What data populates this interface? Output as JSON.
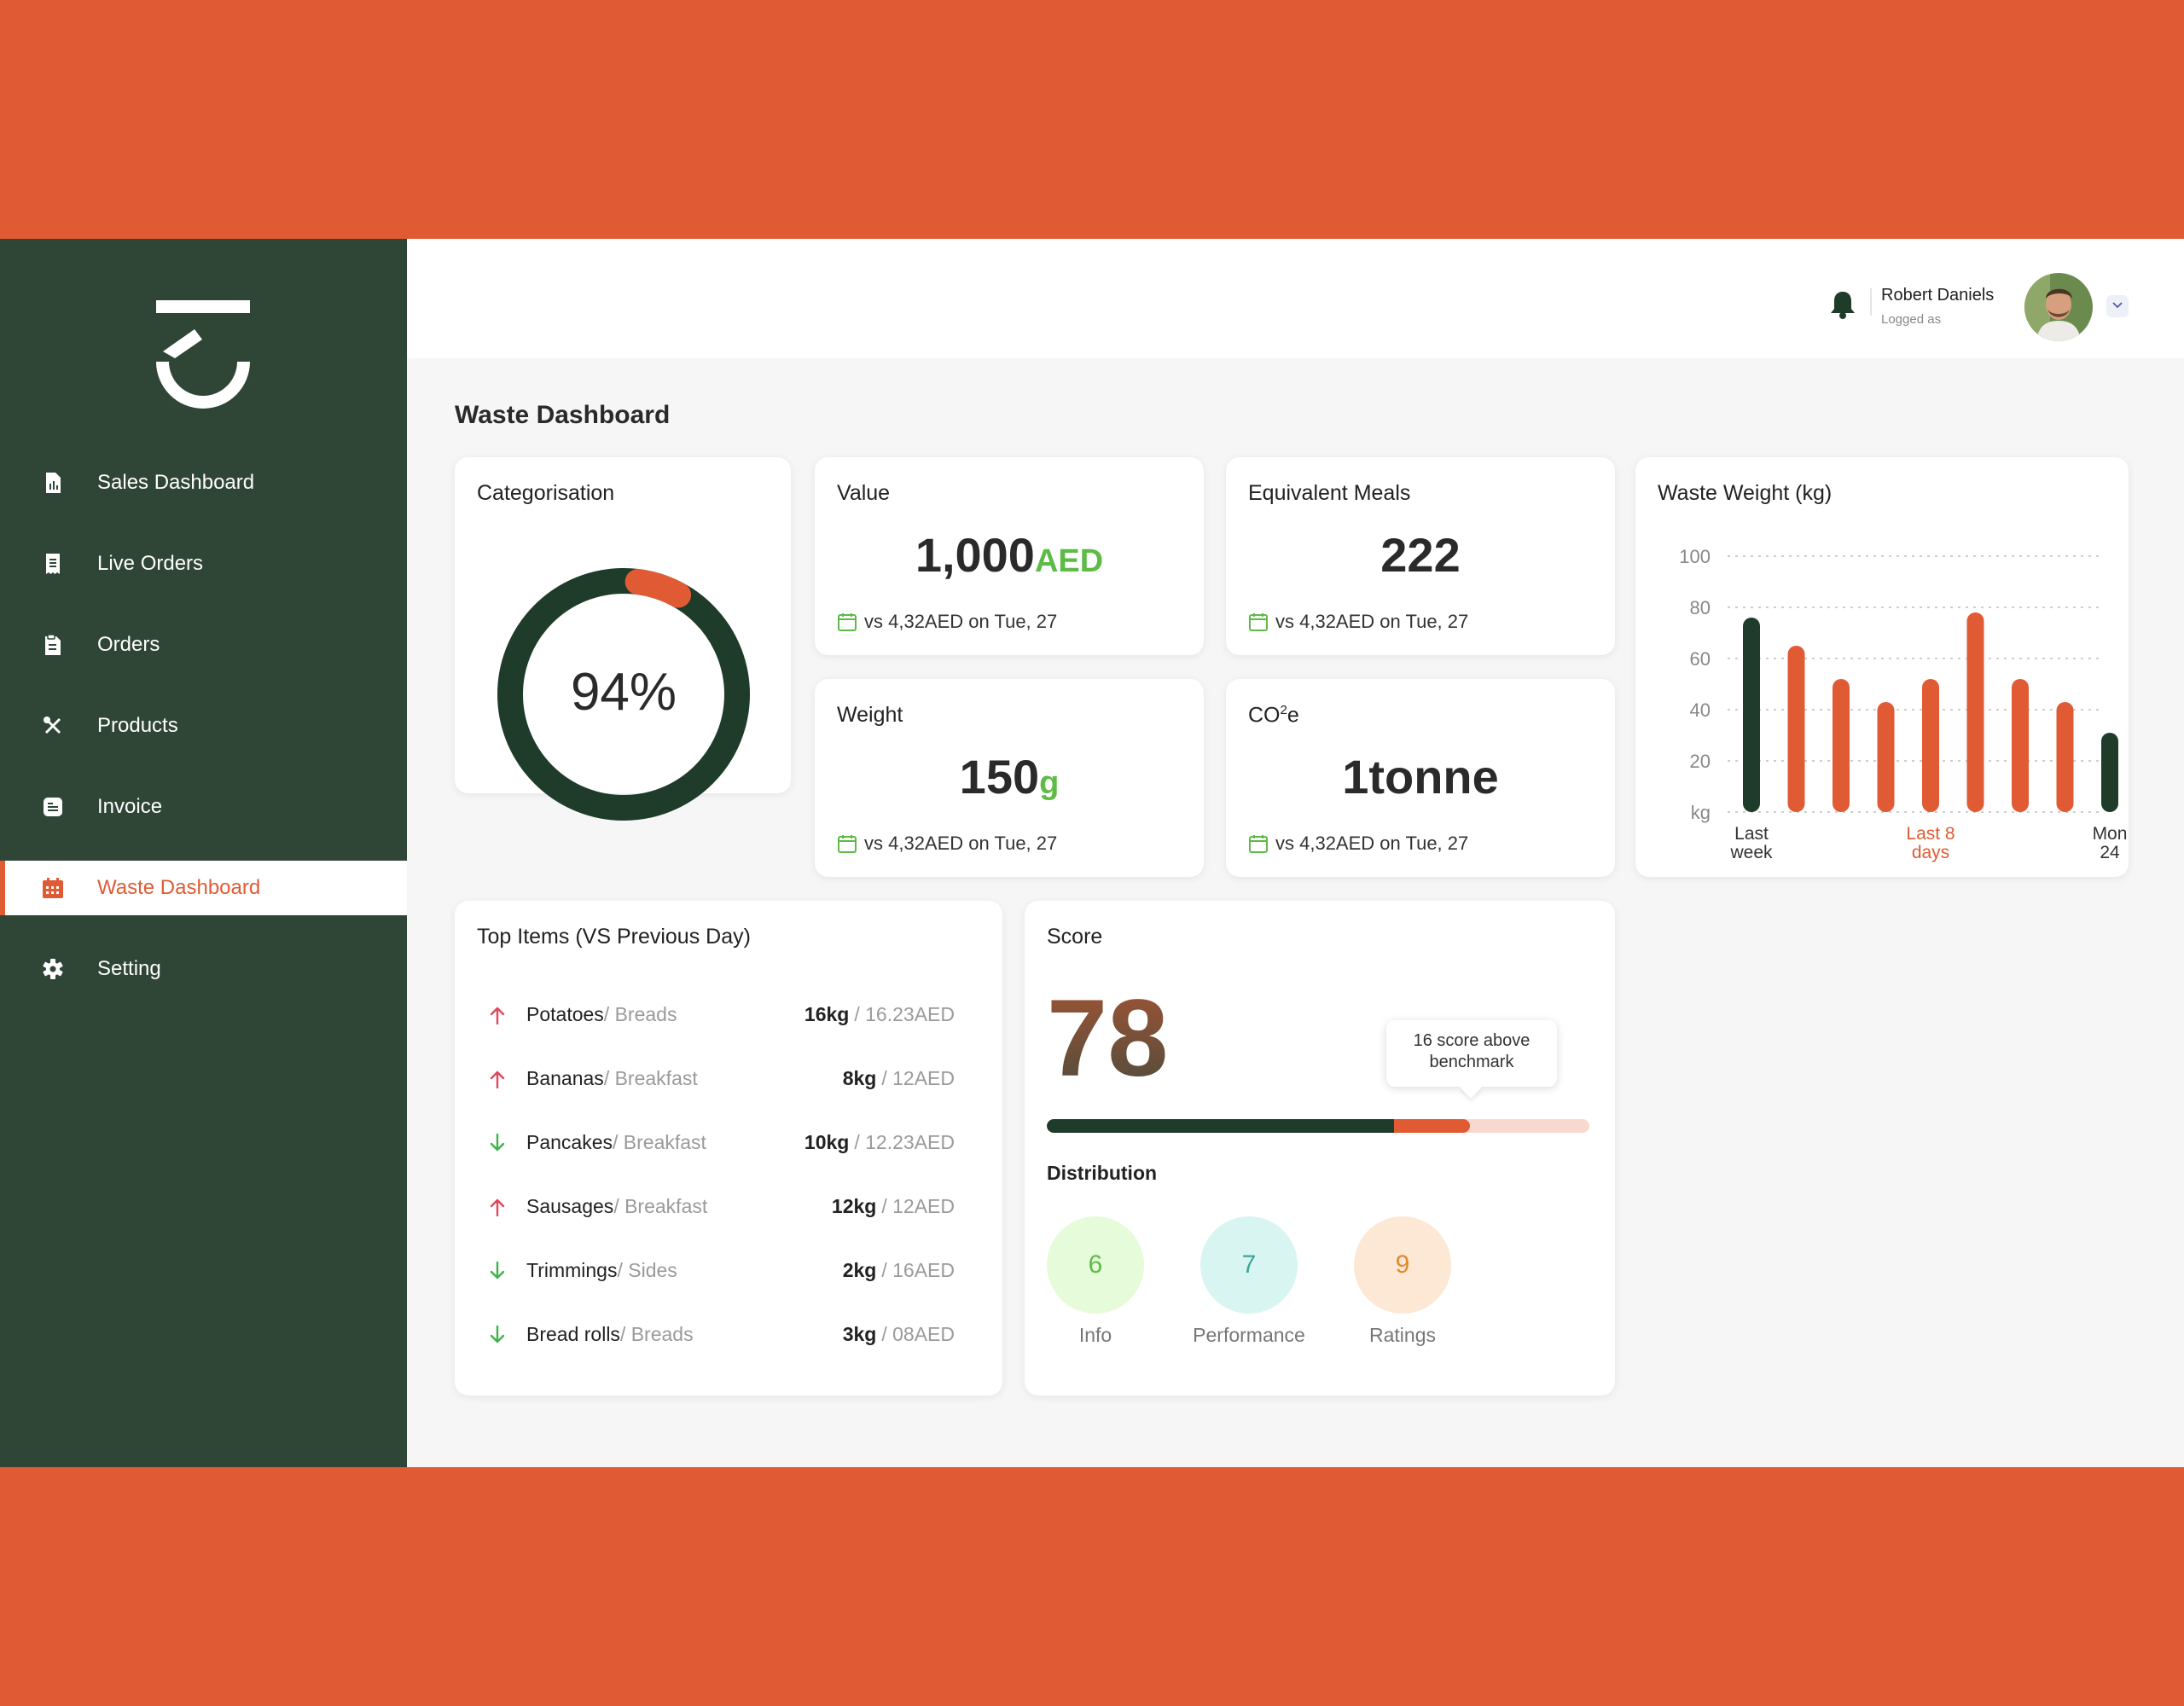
{
  "sidebar": {
    "items": [
      {
        "label": "Sales Dashboard",
        "icon": "report-icon"
      },
      {
        "label": "Live Orders",
        "icon": "receipt-icon"
      },
      {
        "label": "Orders",
        "icon": "clipboard-icon"
      },
      {
        "label": "Products",
        "icon": "utensils-icon"
      },
      {
        "label": "Invoice",
        "icon": "invoice-icon"
      },
      {
        "label": "Waste Dashboard",
        "icon": "calendar-icon",
        "active": true
      },
      {
        "label": "Setting",
        "icon": "gear-icon"
      }
    ]
  },
  "header": {
    "user_name": "Robert Daniels",
    "user_sub": "Logged as"
  },
  "page": {
    "title": "Waste Dashboard"
  },
  "categorisation": {
    "title": "Categorisation",
    "percent_label": "94%",
    "percent": 94
  },
  "value": {
    "title": "Value",
    "number": "1,000",
    "unit": "AED",
    "compare": "vs 4,32AED on Tue, 27"
  },
  "meals": {
    "title": "Equivalent Meals",
    "number": "222",
    "compare": "vs 4,32AED on Tue, 27"
  },
  "weight": {
    "title": "Weight",
    "number": "150",
    "unit": "g",
    "compare": "vs 4,32AED on Tue, 27"
  },
  "co2": {
    "title_main": "CO",
    "title_sup": "2",
    "title_tail": "e",
    "number": "1tonne",
    "compare": "vs 4,32AED on Tue, 27"
  },
  "top_items": {
    "title": "Top Items (VS Previous Day)",
    "rows": [
      {
        "name": "Potatoes",
        "category": " / Breads",
        "qty": "16kg",
        "price": "/ 16.23AED",
        "trend": "up"
      },
      {
        "name": "Bananas",
        "category": " / Breakfast",
        "qty": "8kg",
        "price": "/ 12AED",
        "trend": "up"
      },
      {
        "name": "Pancakes",
        "category": " / Breakfast",
        "qty": "10kg",
        "price": "/ 12.23AED",
        "trend": "down"
      },
      {
        "name": "Sausages",
        "category": " / Breakfast",
        "qty": "12kg",
        "price": "/ 12AED",
        "trend": "up"
      },
      {
        "name": "Trimmings",
        "category": " / Sides",
        "qty": "2kg",
        "price": "/ 16AED",
        "trend": "down"
      },
      {
        "name": "Bread rolls",
        "category": " / Breads",
        "qty": "3kg",
        "price": "/ 08AED",
        "trend": "down"
      }
    ]
  },
  "score": {
    "title": "Score",
    "value": "78",
    "tooltip": "16 score above benchmark",
    "bar_fraction_dark": 0.64,
    "bar_fraction_accent": 0.14,
    "distribution_title": "Distribution",
    "distribution": [
      {
        "value": "6",
        "label": "Info",
        "bg": "#E6FBD9",
        "fg": "#5DBB46"
      },
      {
        "value": "7",
        "label": "Performance",
        "bg": "#D9F5F1",
        "fg": "#3FA597"
      },
      {
        "value": "9",
        "label": "Ratings",
        "bg": "#FDE7D5",
        "fg": "#E08A2E"
      }
    ]
  },
  "chart_data": {
    "type": "bar",
    "title": "Waste Weight (kg)",
    "yticks": [
      "100",
      "80",
      "60",
      "40",
      "20",
      "kg"
    ],
    "ylim": [
      0,
      100
    ],
    "values": [
      76,
      65,
      52,
      43,
      52,
      78,
      52,
      43,
      31
    ],
    "highlight": [
      true,
      false,
      false,
      false,
      false,
      false,
      false,
      false,
      true
    ],
    "xlabels": [
      {
        "text": "Last week",
        "index": 0
      },
      {
        "text": "Last 8 days",
        "index": 4,
        "accent": true
      },
      {
        "text": "Mon 24",
        "index": 8
      }
    ],
    "grid": true
  },
  "colors": {
    "accent": "#E05B34",
    "dark": "#1F3B29",
    "green": "#5DBB46",
    "sidebar": "#2F4637"
  }
}
